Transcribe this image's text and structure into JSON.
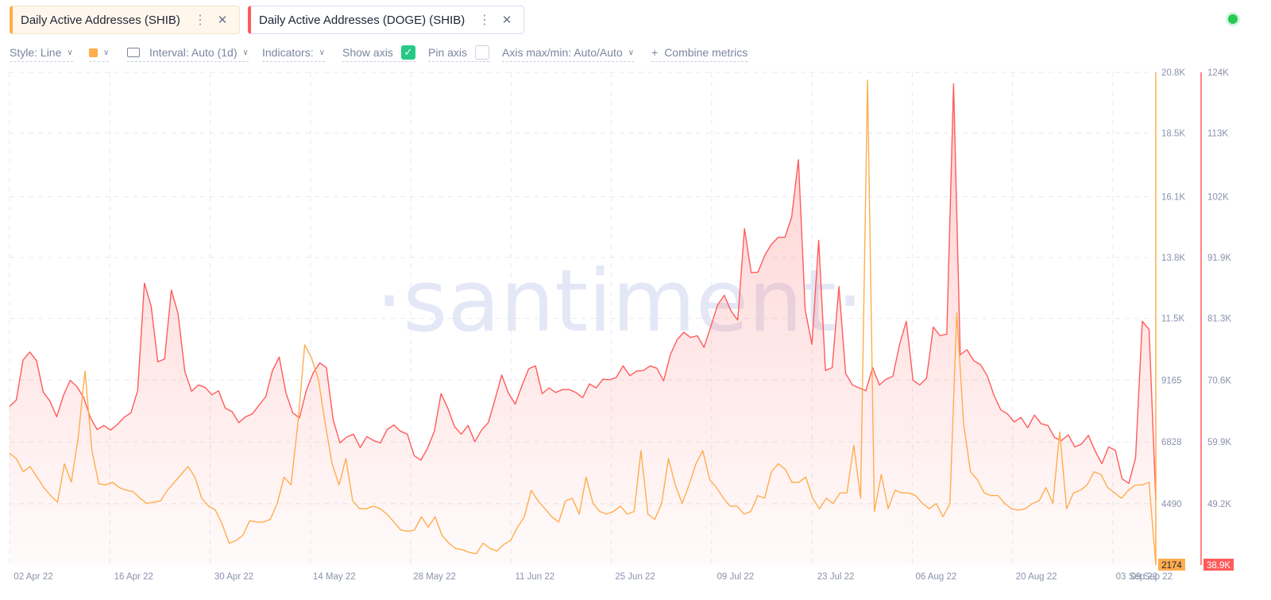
{
  "tabs": [
    {
      "label": "Daily Active Addresses (SHIB)",
      "more": "⋮",
      "close": "✕"
    },
    {
      "label": "Daily Active Addresses (DOGE) (SHIB)",
      "more": "⋮",
      "close": "✕"
    }
  ],
  "toolbar": {
    "style_label": "Style: Line",
    "interval_label": "Interval: Auto (1d)",
    "indicators_label": "Indicators:",
    "show_axis_label": "Show axis",
    "show_axis_checked": true,
    "pin_axis_label": "Pin axis",
    "pin_axis_checked": false,
    "axis_maxmin_label": "Axis max/min: Auto/Auto",
    "combine_label": "Combine metrics",
    "color_swatch": "#ffad4d"
  },
  "watermark": "·santiment·",
  "chart_data": {
    "type": "line",
    "x_ticks": [
      "02 Apr 22",
      "16 Apr 22",
      "30 Apr 22",
      "14 May 22",
      "28 May 22",
      "11 Jun 22",
      "25 Jun 22",
      "09 Jul 22",
      "23 Jul 22",
      "06 Aug 22",
      "20 Aug 22",
      "03 Sep 22",
      "09 Sep 22"
    ],
    "x_range": [
      "2022-04-02",
      "2022-09-09"
    ],
    "left_axis": {
      "ticks": [
        "20.8K",
        "18.5K",
        "16.1K",
        "13.8K",
        "11.5K",
        "9165",
        "6828",
        "4490"
      ],
      "min_value": 2174,
      "max_value": 20800,
      "last_label": "2174",
      "color": "#ffad4d"
    },
    "right_axis": {
      "ticks": [
        "124K",
        "113K",
        "102K",
        "91.9K",
        "81.3K",
        "70.6K",
        "59.9K",
        "49.2K"
      ],
      "min_value": 38900,
      "max_value": 124000,
      "last_label": "38.9K",
      "color": "#ff5b5b"
    },
    "series": [
      {
        "name": "Daily Active Addresses (SHIB)",
        "color": "#ffad4d",
        "values": [
          6400,
          6200,
          5700,
          5900,
          5500,
          5100,
          4800,
          4550,
          6000,
          5300,
          7000,
          9500,
          6500,
          5250,
          5200,
          5300,
          5100,
          5000,
          4950,
          4700,
          4500,
          4550,
          4600,
          5000,
          5300,
          5600,
          5900,
          5500,
          4700,
          4400,
          4250,
          3700,
          3000,
          3100,
          3300,
          3850,
          3800,
          3800,
          3900,
          4500,
          5500,
          5200,
          7500,
          10500,
          10000,
          9200,
          7500,
          6000,
          5200,
          6200,
          4600,
          4300,
          4300,
          4400,
          4300,
          4100,
          3800,
          3500,
          3450,
          3500,
          4000,
          3600,
          4000,
          3300,
          3000,
          2800,
          2750,
          2650,
          2600,
          3000,
          2800,
          2700,
          2950,
          3100,
          3600,
          4000,
          5000,
          4600,
          4300,
          4000,
          3800,
          4600,
          4700,
          4100,
          5500,
          4500,
          4200,
          4100,
          4200,
          4400,
          4100,
          4200,
          6500,
          4100,
          3900,
          4500,
          6200,
          5200,
          4500,
          5200,
          6000,
          6500,
          5400,
          5100,
          4700,
          4400,
          4400,
          4100,
          4200,
          4800,
          4700,
          5700,
          6000,
          5800,
          5300,
          5300,
          5500,
          4700,
          4300,
          4700,
          4500,
          4900,
          4900,
          6700,
          4700,
          20500,
          4200,
          5600,
          4300,
          5000,
          4900,
          4900,
          4800,
          4500,
          4300,
          4500,
          4000,
          4500,
          11700,
          7500,
          5700,
          5400,
          4900,
          4800,
          4800,
          4500,
          4300,
          4250,
          4300,
          4500,
          4600,
          5100,
          4500,
          7200,
          4300,
          4900,
          5000,
          5200,
          5700,
          5600,
          5100,
          4900,
          4700,
          5000,
          5200,
          5200,
          5300,
          2174
        ]
      },
      {
        "name": "Daily Active Addresses (DOGE) (SHIB)",
        "color": "#ff5b5b",
        "values": [
          66300,
          67400,
          74300,
          75700,
          74200,
          68800,
          67200,
          64500,
          68200,
          70800,
          69700,
          67800,
          64300,
          62300,
          63000,
          62200,
          63200,
          64400,
          65200,
          69000,
          87600,
          83600,
          74000,
          74500,
          86400,
          82300,
          72300,
          68900,
          70000,
          69600,
          68300,
          69000,
          66000,
          65400,
          63500,
          64500,
          65000,
          66500,
          68000,
          72500,
          74800,
          68600,
          65200,
          64300,
          69000,
          72000,
          73800,
          73000,
          64000,
          60000,
          61000,
          61500,
          59200,
          61100,
          60400,
          60000,
          62300,
          63100,
          62000,
          61500,
          57800,
          57000,
          59100,
          62000,
          68500,
          66000,
          62800,
          61500,
          63000,
          60200,
          62200,
          63500,
          67500,
          71700,
          68600,
          66700,
          69900,
          72800,
          73300,
          68500,
          69500,
          68700,
          69200,
          69200,
          68700,
          67800,
          70200,
          69500,
          71000,
          70900,
          71300,
          73300,
          71600,
          72400,
          72500,
          73300,
          72900,
          70700,
          75200,
          77800,
          79100,
          78200,
          78500,
          76500,
          80100,
          83800,
          85500,
          82800,
          81200,
          97000,
          89400,
          89500,
          92400,
          94300,
          95500,
          95500,
          99000,
          108900,
          83000,
          77000,
          95000,
          72500,
          73000,
          87000,
          72000,
          70000,
          69500,
          69000,
          73000,
          70000,
          71000,
          71500,
          77000,
          81000,
          70800,
          70000,
          71200,
          80000,
          78500,
          78800,
          122000,
          75200,
          76100,
          74200,
          73500,
          71600,
          68200,
          65700,
          65000,
          63600,
          64400,
          62600,
          64800,
          63300,
          63000,
          60900,
          60400,
          61400,
          59300,
          59800,
          61300,
          58600,
          56400,
          59300,
          58700,
          53800,
          53000,
          57400,
          81000,
          79600,
          50100
        ]
      }
    ],
    "grid": true,
    "legend": "top-left tabs"
  }
}
